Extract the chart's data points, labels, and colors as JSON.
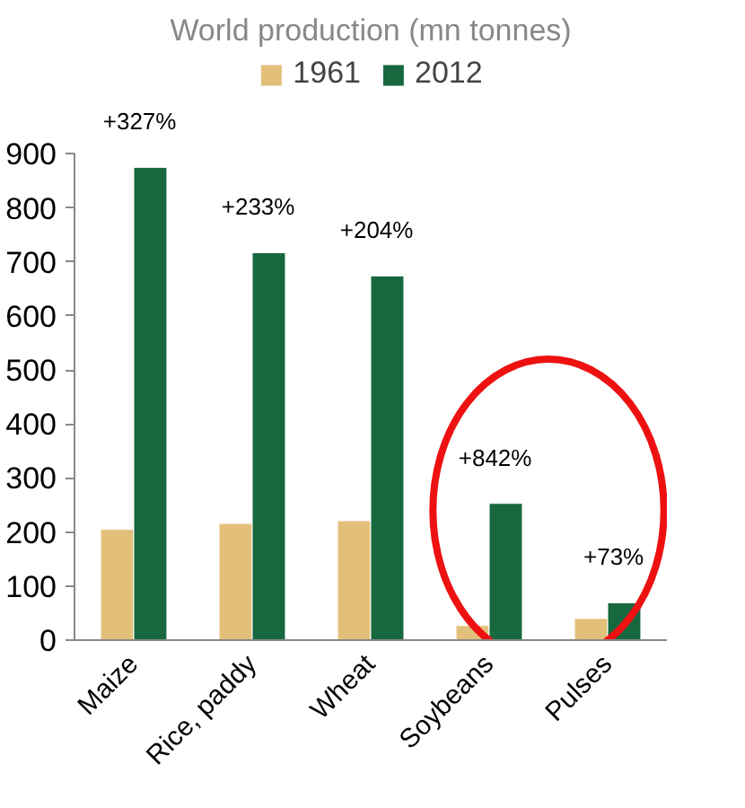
{
  "chart_data": {
    "type": "bar",
    "title": "World production (mn tonnes)",
    "categories": [
      "Maize",
      "Rice, paddy",
      "Wheat",
      "Soybeans",
      "Pulses"
    ],
    "series": [
      {
        "name": "1961",
        "color": "#e3c07a",
        "values": [
          205,
          216,
          221,
          27,
          40
        ]
      },
      {
        "name": "2012",
        "color": "#17683f",
        "values": [
          875,
          717,
          674,
          253,
          69
        ]
      }
    ],
    "ylim": [
      0,
      900
    ],
    "yticks": [
      0,
      100,
      200,
      300,
      400,
      500,
      600,
      700,
      800,
      900
    ],
    "grid": false,
    "legend": "top",
    "annotations": [
      {
        "text": "+327%",
        "x": "Maize",
        "y": 875
      },
      {
        "text": "+233%",
        "x": "Rice, paddy",
        "y": 717
      },
      {
        "text": "+204%",
        "x": "Wheat",
        "y": 674
      },
      {
        "text": "+842%",
        "x": "Soybeans",
        "y": 253
      },
      {
        "text": "+73%",
        "x": "Pulses",
        "y": 69
      }
    ]
  }
}
